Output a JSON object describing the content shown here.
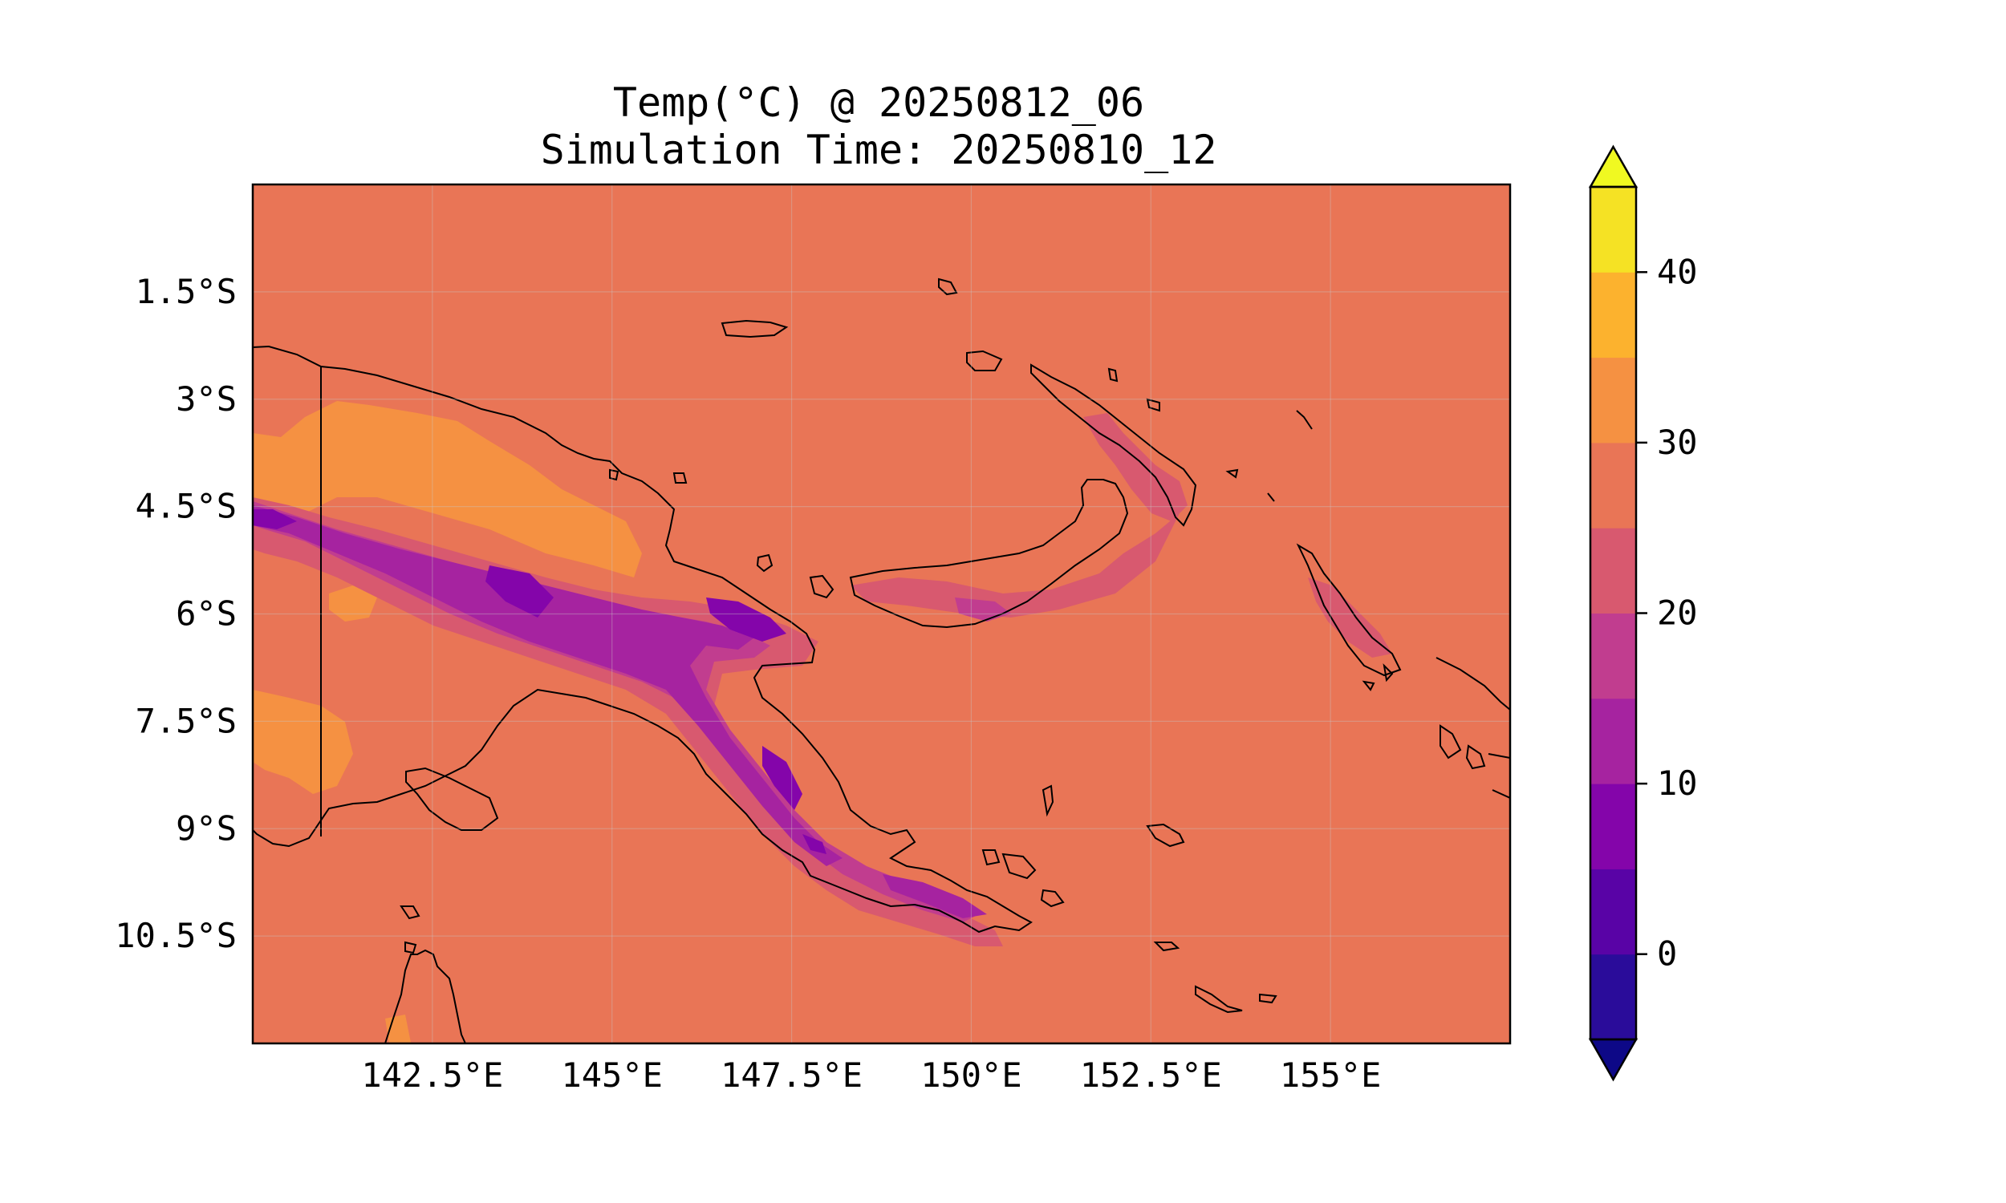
{
  "title": {
    "line1": "Temp(°C) @ 20250812_06",
    "line2": "Simulation Time: 20250810_12"
  },
  "map": {
    "lon_range": [
      140.0,
      157.5
    ],
    "lat_range": [
      -12.0,
      0.0
    ],
    "lon_ticks": [
      {
        "value": 142.5,
        "label": "142.5°E"
      },
      {
        "value": 145.0,
        "label": "145°E"
      },
      {
        "value": 147.5,
        "label": "147.5°E"
      },
      {
        "value": 150.0,
        "label": "150°E"
      },
      {
        "value": 152.5,
        "label": "152.5°E"
      },
      {
        "value": 155.0,
        "label": "155°E"
      }
    ],
    "lat_ticks": [
      {
        "value": -1.5,
        "label": "1.5°S"
      },
      {
        "value": -3.0,
        "label": "3°S"
      },
      {
        "value": -4.5,
        "label": "4.5°S"
      },
      {
        "value": -6.0,
        "label": "6°S"
      },
      {
        "value": -7.5,
        "label": "7.5°S"
      },
      {
        "value": -9.0,
        "label": "9°S"
      },
      {
        "value": -10.5,
        "label": "10.5°S"
      }
    ],
    "background_color": "#e97556",
    "gridlines": true,
    "coastlines": true
  },
  "colorbar": {
    "levels": [
      -5,
      0,
      5,
      10,
      15,
      20,
      25,
      30,
      35,
      40,
      45
    ],
    "colors": [
      "#2a0c9a",
      "#5903a6",
      "#8405aa",
      "#a623a0",
      "#c13d8f",
      "#d8596f",
      "#e97556",
      "#f59142",
      "#fcb22e",
      "#f5e224"
    ],
    "under_color": "#0d0887",
    "over_color": "#f0f921",
    "ticks": [
      {
        "value": 0,
        "label": "0"
      },
      {
        "value": 10,
        "label": "10"
      },
      {
        "value": 20,
        "label": "20"
      },
      {
        "value": 30,
        "label": "30"
      },
      {
        "value": 40,
        "label": "40"
      }
    ],
    "extend": "both"
  }
}
